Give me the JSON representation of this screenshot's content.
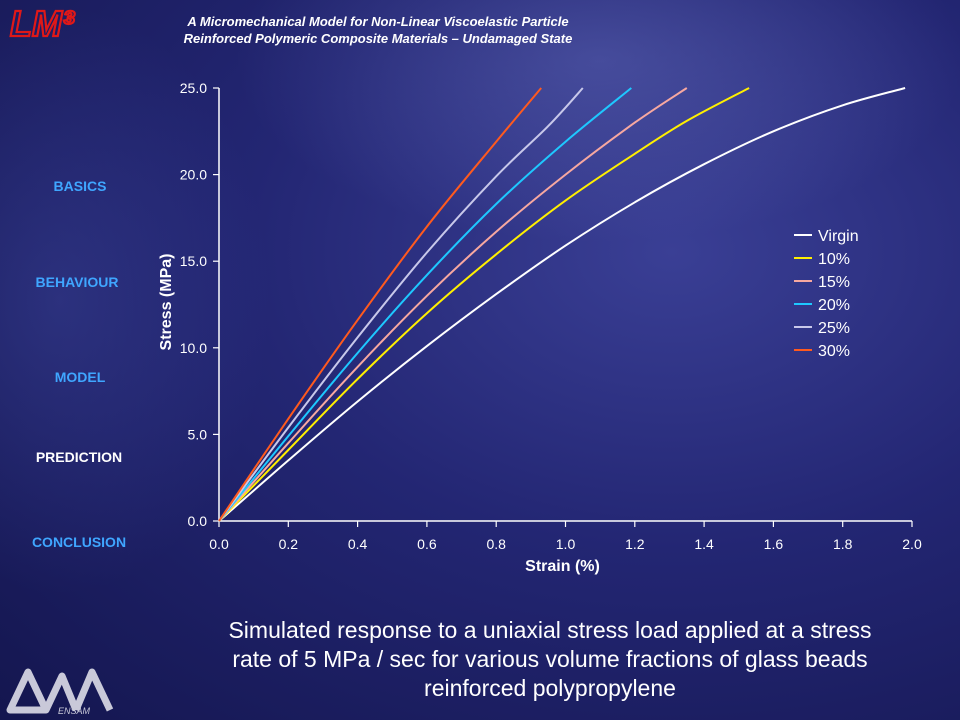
{
  "header": {
    "logo_text": "LM³",
    "title_line1": "A Micromechanical Model for Non-Linear Viscoelastic Particle",
    "title_line2": "Reinforced Polymeric Composite Materials – Undamaged State"
  },
  "nav": {
    "items": [
      {
        "label": "BASICS",
        "active": false
      },
      {
        "label": "BEHAVIOUR",
        "active": false
      },
      {
        "label": "MODEL",
        "active": false
      },
      {
        "label": "PREDICTION",
        "active": true
      },
      {
        "label": "CONCLUSION",
        "active": false
      }
    ]
  },
  "caption": {
    "line1": "Simulated response to a uniaxial stress load applied at a stress",
    "line2": "rate of 5 MPa / sec for various volume fractions of glass beads",
    "line3": "reinforced polypropylene"
  },
  "footer": {
    "logo_text": "ENSAM"
  },
  "chart_data": {
    "type": "line",
    "title": "",
    "xlabel": "Strain (%)",
    "ylabel": "Stress (MPa)",
    "xlim": [
      0.0,
      2.0
    ],
    "ylim": [
      0.0,
      25.0
    ],
    "x_ticks": [
      "0.0",
      "0.2",
      "0.4",
      "0.6",
      "0.8",
      "1.0",
      "1.2",
      "1.4",
      "1.6",
      "1.8",
      "2.0"
    ],
    "y_ticks": [
      "0.0",
      "5.0",
      "10.0",
      "15.0",
      "20.0",
      "25.0"
    ],
    "grid": false,
    "legend_position": "right",
    "series": [
      {
        "name": "Virgin",
        "color": "#ffffff",
        "x": [
          0,
          0.2,
          0.4,
          0.6,
          0.8,
          1.0,
          1.2,
          1.4,
          1.6,
          1.8,
          1.98
        ],
        "y": [
          0,
          3.5,
          6.9,
          10.1,
          13.1,
          15.9,
          18.4,
          20.6,
          22.5,
          24.0,
          25.0
        ]
      },
      {
        "name": "10%",
        "color": "#ffef00",
        "x": [
          0,
          0.2,
          0.4,
          0.6,
          0.8,
          1.0,
          1.2,
          1.35,
          1.53
        ],
        "y": [
          0,
          4.1,
          8.2,
          12.0,
          15.4,
          18.5,
          21.2,
          23.1,
          25.0
        ]
      },
      {
        "name": "15%",
        "color": "#f7a8a0",
        "x": [
          0,
          0.2,
          0.4,
          0.6,
          0.8,
          1.0,
          1.2,
          1.35
        ],
        "y": [
          0,
          4.5,
          8.9,
          13.0,
          16.7,
          20.0,
          23.0,
          25.0
        ]
      },
      {
        "name": "20%",
        "color": "#1ec8ff",
        "x": [
          0,
          0.2,
          0.4,
          0.6,
          0.8,
          1.0,
          1.19
        ],
        "y": [
          0,
          4.9,
          9.7,
          14.2,
          18.3,
          21.9,
          25.0
        ]
      },
      {
        "name": "25%",
        "color": "#c8c8ea",
        "x": [
          0,
          0.2,
          0.4,
          0.6,
          0.8,
          0.95,
          1.05
        ],
        "y": [
          0,
          5.4,
          10.6,
          15.5,
          19.9,
          22.8,
          25.0
        ]
      },
      {
        "name": "30%",
        "color": "#ff5a1e",
        "x": [
          0,
          0.2,
          0.4,
          0.6,
          0.8,
          0.93
        ],
        "y": [
          0,
          5.9,
          11.6,
          17.0,
          21.9,
          25.0
        ]
      }
    ]
  }
}
